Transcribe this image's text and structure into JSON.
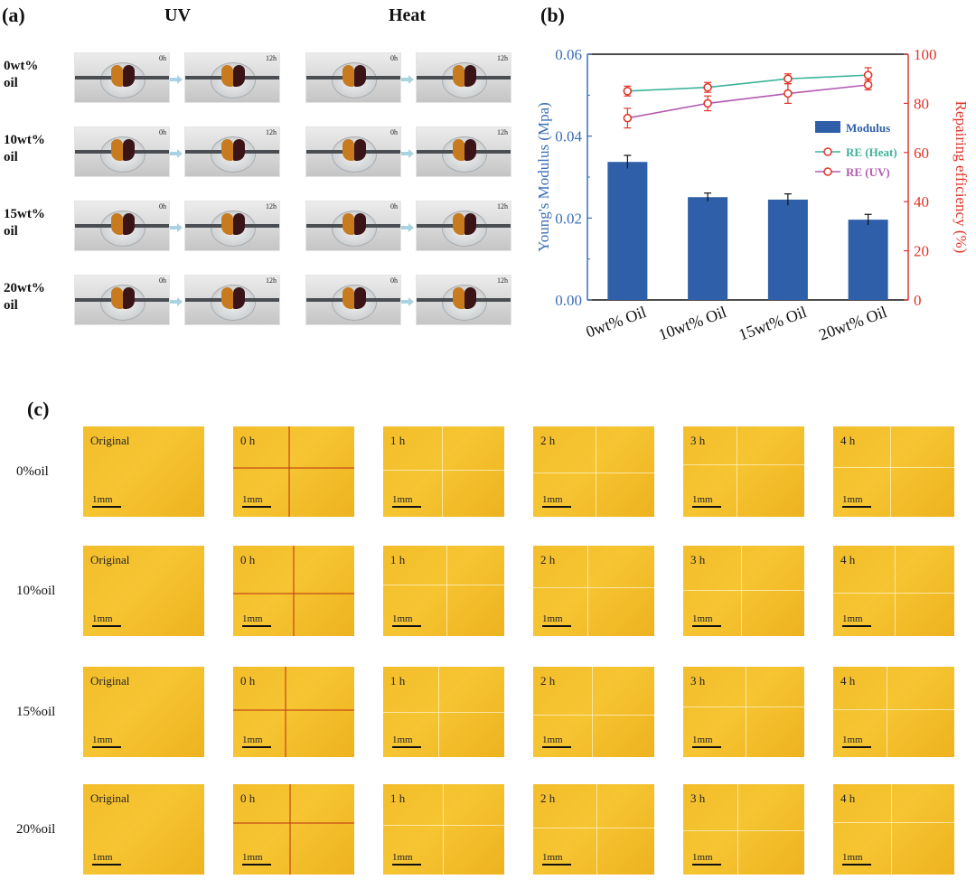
{
  "panel_a": {
    "letter": "(a)",
    "col_uv": "UV",
    "col_heat": "Heat",
    "rows": [
      {
        "line1": "0wt%",
        "line2": "oil"
      },
      {
        "line1": "10wt%",
        "line2": "oil"
      },
      {
        "line1": "15wt%",
        "line2": "oil"
      },
      {
        "line1": "20wt%",
        "line2": "oil"
      }
    ],
    "t0": "0h",
    "t12": "12h"
  },
  "panel_b": {
    "letter": "(b)"
  },
  "chart_data": {
    "type": "bar",
    "categories": [
      "0wt% Oil",
      "10wt% Oil",
      "15wt% Oil",
      "20wt% Oil"
    ],
    "ylabel_left": "Young's Modulus (Mpa)",
    "ylabel_right": "Repairing efficiency (%)",
    "ylim_left": [
      0.0,
      0.06
    ],
    "yticks_left": [
      "0.00",
      "0.02",
      "0.04",
      "0.06"
    ],
    "ylim_right": [
      0,
      100
    ],
    "yticks_right": [
      "0",
      "20",
      "40",
      "60",
      "80",
      "100"
    ],
    "bars": {
      "name": "Modulus",
      "values": [
        0.0337,
        0.0251,
        0.0245,
        0.0196
      ],
      "errors": [
        0.0016,
        0.001,
        0.0014,
        0.0013
      ],
      "color": "#2e5fa8"
    },
    "lines": [
      {
        "name": "RE (Heat)",
        "values": [
          85,
          86.5,
          90,
          91.5
        ],
        "errors": [
          2,
          2,
          2,
          3
        ],
        "color": "#3cb39a"
      },
      {
        "name": "RE (UV)",
        "values": [
          74,
          80,
          84,
          87.5
        ],
        "errors": [
          4,
          3,
          4,
          2
        ],
        "color": "#b25ab0"
      }
    ],
    "marker_color": "#e0352a",
    "left_axis_color": "#3b6fb6",
    "right_axis_color": "#e0352a"
  },
  "panel_c": {
    "letter": "(c)",
    "rows": [
      "0%oil",
      "10%oil",
      "15%oil",
      "20%oil"
    ],
    "cols": [
      "Original",
      "0 h",
      "1 h",
      "2 h",
      "3 h",
      "4 h"
    ],
    "scale": "1mm"
  }
}
